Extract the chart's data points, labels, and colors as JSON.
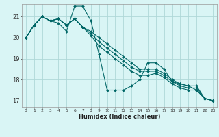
{
  "xlabel": "Humidex (Indice chaleur)",
  "background_color": "#d9f5f5",
  "grid_color": "#afd8d8",
  "line_color": "#006666",
  "x_values": [
    0,
    1,
    2,
    3,
    4,
    5,
    6,
    7,
    8,
    9,
    10,
    11,
    12,
    13,
    14,
    15,
    16,
    17,
    18,
    19,
    20,
    21,
    22,
    23
  ],
  "series": [
    [
      20.0,
      20.6,
      21.0,
      20.8,
      20.9,
      20.6,
      20.9,
      20.5,
      20.3,
      20.0,
      19.7,
      19.4,
      19.1,
      18.8,
      18.5,
      18.5,
      18.5,
      18.3,
      18.0,
      17.8,
      17.7,
      17.7,
      17.1,
      17.0
    ],
    [
      20.0,
      20.6,
      21.0,
      20.8,
      20.9,
      20.6,
      20.9,
      20.5,
      20.2,
      19.8,
      19.5,
      19.2,
      18.9,
      18.6,
      18.4,
      18.4,
      18.4,
      18.2,
      17.9,
      17.7,
      17.6,
      17.6,
      17.1,
      17.0
    ],
    [
      20.0,
      20.6,
      21.0,
      20.8,
      20.9,
      20.6,
      20.9,
      20.5,
      20.1,
      19.6,
      19.3,
      19.0,
      18.7,
      18.4,
      18.2,
      18.2,
      18.3,
      18.1,
      17.8,
      17.6,
      17.5,
      17.5,
      17.1,
      17.0
    ],
    [
      20.0,
      20.6,
      21.0,
      20.8,
      20.7,
      20.3,
      21.5,
      21.5,
      20.8,
      19.2,
      17.5,
      17.5,
      17.5,
      17.7,
      18.0,
      18.8,
      18.8,
      18.5,
      17.9,
      17.8,
      17.7,
      17.5,
      17.1,
      17.0
    ]
  ],
  "ylim": [
    16.7,
    21.6
  ],
  "yticks": [
    17,
    18,
    19,
    20,
    21
  ],
  "xticks": [
    0,
    1,
    2,
    3,
    4,
    5,
    6,
    7,
    8,
    9,
    10,
    11,
    12,
    13,
    14,
    15,
    16,
    17,
    18,
    19,
    20,
    21,
    22,
    23
  ],
  "figsize": [
    3.2,
    2.0
  ],
  "dpi": 100
}
